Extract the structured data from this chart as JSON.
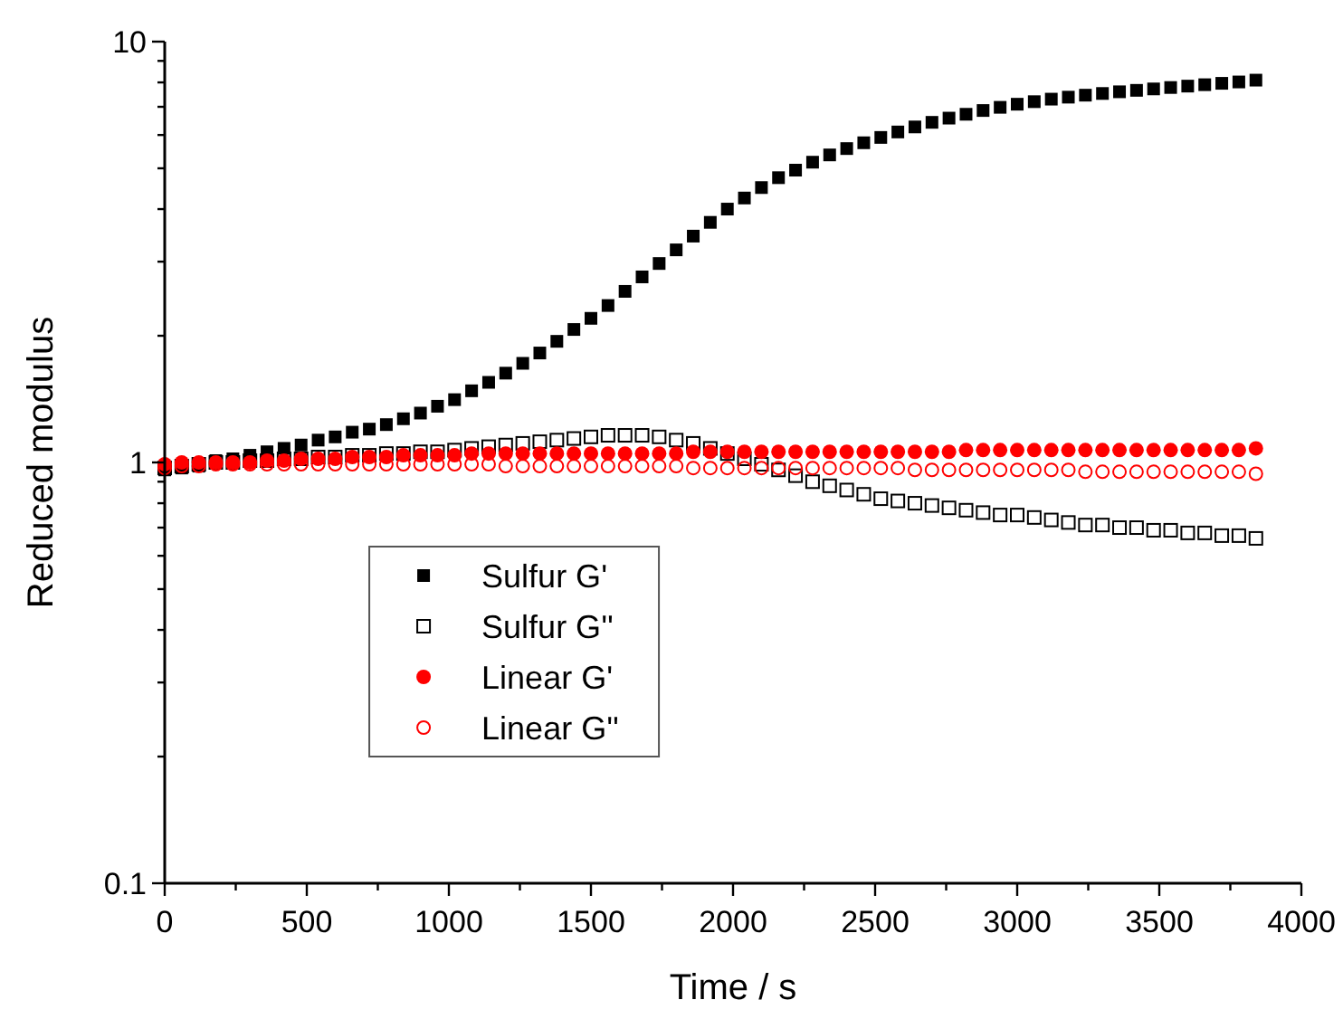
{
  "chart_data": {
    "type": "scatter",
    "xlabel": "Time / s",
    "ylabel": "Reduced modulus",
    "log": "y",
    "legend": "left",
    "grid": false,
    "xlim": [
      0,
      4000
    ],
    "ylim": [
      0.1,
      10
    ],
    "xticks": [
      0,
      {
        "value": 250,
        "label": null
      },
      500,
      {
        "value": 750,
        "label": null
      },
      1000,
      {
        "value": 1250,
        "label": null
      },
      1500,
      {
        "value": 1750,
        "label": null
      },
      2000,
      {
        "value": 2250,
        "label": null
      },
      2500,
      {
        "value": 2750,
        "label": null
      },
      3000,
      {
        "value": 3250,
        "label": null
      },
      3500,
      {
        "value": 3750,
        "label": null
      },
      4000
    ],
    "yticks": [
      0.1,
      {
        "value": 0.2,
        "label": null
      },
      {
        "value": 0.3,
        "label": null
      },
      {
        "value": 0.4,
        "label": null
      },
      {
        "value": 0.5,
        "label": null
      },
      {
        "value": 0.6,
        "label": null
      },
      {
        "value": 0.7,
        "label": null
      },
      {
        "value": 0.8,
        "label": null
      },
      {
        "value": 0.9,
        "label": null
      },
      1,
      {
        "value": 2,
        "label": null
      },
      {
        "value": 3,
        "label": null
      },
      {
        "value": 4,
        "label": null
      },
      {
        "value": 5,
        "label": null
      },
      {
        "value": 6,
        "label": null
      },
      {
        "value": 7,
        "label": null
      },
      {
        "value": 8,
        "label": null
      },
      {
        "value": 9,
        "label": null
      },
      10
    ],
    "x": [
      0,
      60,
      120,
      180,
      240,
      300,
      360,
      420,
      480,
      540,
      600,
      660,
      720,
      780,
      840,
      900,
      960,
      1020,
      1080,
      1140,
      1200,
      1260,
      1320,
      1380,
      1440,
      1500,
      1560,
      1620,
      1680,
      1740,
      1800,
      1860,
      1920,
      1980,
      2040,
      2100,
      2160,
      2220,
      2280,
      2340,
      2400,
      2460,
      2520,
      2580,
      2640,
      2700,
      2760,
      2820,
      2880,
      2940,
      3000,
      3060,
      3120,
      3180,
      3240,
      3300,
      3360,
      3420,
      3480,
      3540,
      3600,
      3660,
      3720,
      3780,
      3840
    ],
    "series": [
      {
        "name": "Sulfur G'",
        "color": "#000000",
        "marker": "square",
        "values": [
          0.96,
          0.97,
          0.98,
          1.01,
          1.02,
          1.04,
          1.06,
          1.08,
          1.1,
          1.13,
          1.15,
          1.18,
          1.2,
          1.23,
          1.27,
          1.31,
          1.36,
          1.41,
          1.48,
          1.55,
          1.63,
          1.72,
          1.82,
          1.94,
          2.07,
          2.2,
          2.36,
          2.55,
          2.76,
          2.97,
          3.2,
          3.45,
          3.72,
          4.0,
          4.25,
          4.5,
          4.75,
          4.95,
          5.17,
          5.38,
          5.57,
          5.75,
          5.92,
          6.1,
          6.27,
          6.43,
          6.58,
          6.72,
          6.86,
          6.98,
          7.1,
          7.2,
          7.3,
          7.38,
          7.46,
          7.53,
          7.6,
          7.66,
          7.72,
          7.78,
          7.84,
          7.9,
          7.96,
          8.02,
          8.1
        ]
      },
      {
        "name": "Sulfur G''",
        "color": "#000000",
        "marker": "square",
        "values": [
          0.97,
          0.98,
          0.99,
          1.0,
          1.0,
          1.01,
          1.01,
          1.02,
          1.02,
          1.03,
          1.03,
          1.04,
          1.04,
          1.05,
          1.05,
          1.06,
          1.06,
          1.07,
          1.08,
          1.09,
          1.1,
          1.11,
          1.12,
          1.13,
          1.14,
          1.15,
          1.16,
          1.16,
          1.16,
          1.15,
          1.13,
          1.11,
          1.08,
          1.05,
          1.02,
          0.99,
          0.96,
          0.93,
          0.9,
          0.88,
          0.86,
          0.84,
          0.82,
          0.81,
          0.8,
          0.79,
          0.78,
          0.77,
          0.76,
          0.75,
          0.75,
          0.74,
          0.73,
          0.72,
          0.71,
          0.71,
          0.7,
          0.7,
          0.69,
          0.69,
          0.68,
          0.68,
          0.67,
          0.67,
          0.66
        ]
      },
      {
        "name": "Linear G'",
        "color": "#ff0000",
        "marker": "circle",
        "values": [
          0.99,
          1.0,
          1.0,
          1.0,
          1.0,
          1.0,
          1.01,
          1.01,
          1.02,
          1.02,
          1.02,
          1.03,
          1.03,
          1.03,
          1.04,
          1.04,
          1.04,
          1.04,
          1.05,
          1.05,
          1.05,
          1.05,
          1.05,
          1.05,
          1.05,
          1.05,
          1.05,
          1.05,
          1.05,
          1.05,
          1.05,
          1.06,
          1.06,
          1.06,
          1.06,
          1.06,
          1.06,
          1.06,
          1.06,
          1.06,
          1.06,
          1.06,
          1.06,
          1.06,
          1.06,
          1.06,
          1.06,
          1.07,
          1.07,
          1.07,
          1.07,
          1.07,
          1.07,
          1.07,
          1.07,
          1.07,
          1.07,
          1.07,
          1.07,
          1.07,
          1.07,
          1.07,
          1.07,
          1.07,
          1.08
        ]
      },
      {
        "name": "Linear G''",
        "color": "#ff0000",
        "marker": "circle",
        "values": [
          0.97,
          0.98,
          0.98,
          0.99,
          0.99,
          0.99,
          0.99,
          0.99,
          0.99,
          0.99,
          0.99,
          0.99,
          0.99,
          0.99,
          0.99,
          0.99,
          0.99,
          0.99,
          0.99,
          0.99,
          0.98,
          0.98,
          0.98,
          0.98,
          0.98,
          0.98,
          0.98,
          0.98,
          0.98,
          0.98,
          0.98,
          0.97,
          0.97,
          0.97,
          0.97,
          0.97,
          0.97,
          0.97,
          0.97,
          0.97,
          0.97,
          0.97,
          0.97,
          0.97,
          0.96,
          0.96,
          0.96,
          0.96,
          0.96,
          0.96,
          0.96,
          0.96,
          0.96,
          0.96,
          0.95,
          0.95,
          0.95,
          0.95,
          0.95,
          0.95,
          0.95,
          0.95,
          0.95,
          0.95,
          0.94
        ]
      }
    ]
  }
}
